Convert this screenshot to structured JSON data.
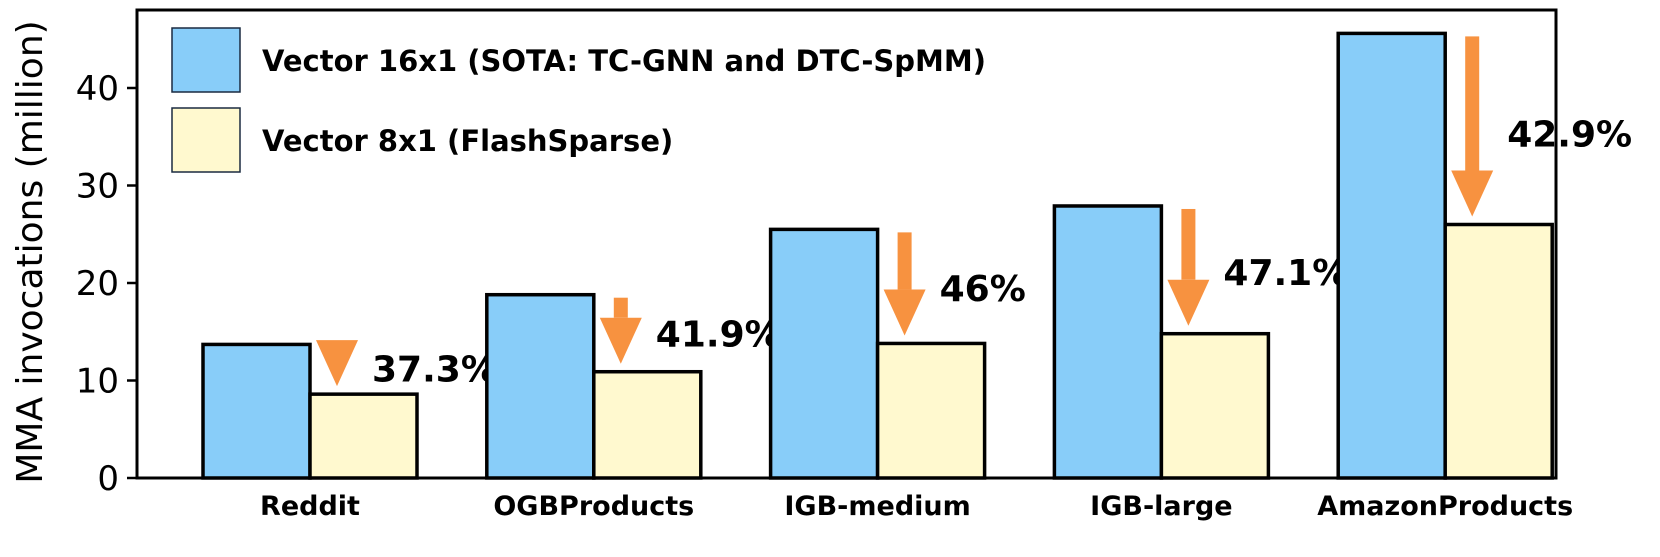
{
  "chart_data": {
    "type": "bar",
    "title": "",
    "xlabel": "",
    "ylabel": "MMA invocations (million)",
    "ylim": [
      0,
      48
    ],
    "yticks": [
      0,
      10,
      20,
      30,
      40
    ],
    "grid": false,
    "legend_position": "top-left",
    "categories": [
      "Reddit",
      "OGBProducts",
      "IGB-medium",
      "IGB-large",
      "AmazonProducts"
    ],
    "series": [
      {
        "name": "Vector 16x1 (SOTA: TC-GNN and DTC-SpMM)",
        "color": "#88cdf9",
        "values": [
          13.7,
          18.8,
          25.5,
          27.9,
          45.6
        ]
      },
      {
        "name": "Vector 8x1 (FlashSparse)",
        "color": "#fff9cf",
        "values": [
          8.6,
          10.9,
          13.8,
          14.8,
          26.0
        ]
      }
    ],
    "annotations": [
      "37.3%",
      "41.9%",
      "46%",
      "47.1%",
      "42.9%"
    ],
    "arrow_color": "#f79240"
  }
}
